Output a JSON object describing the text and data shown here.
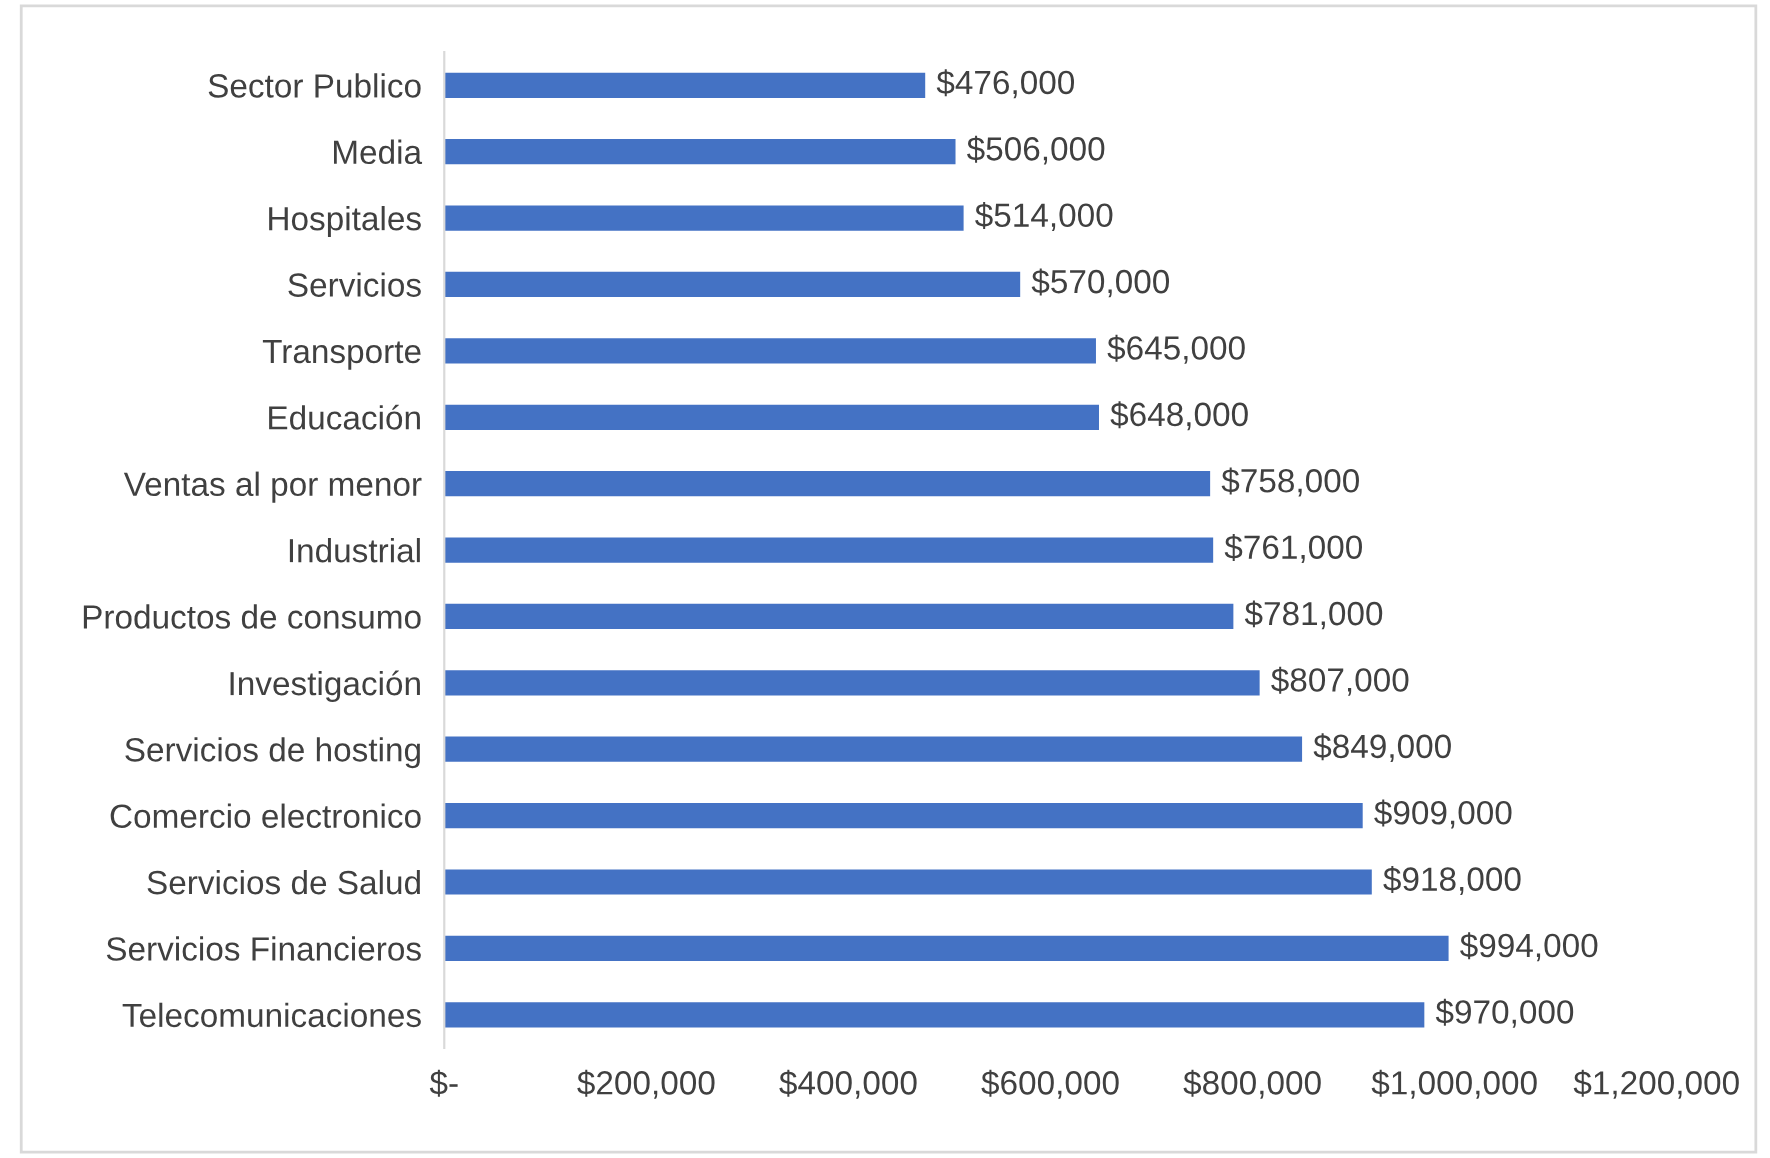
{
  "chart_data": {
    "type": "bar",
    "orientation": "horizontal",
    "categories": [
      "Sector Publico",
      "Media",
      "Hospitales",
      "Servicios",
      "Transporte",
      "Educación",
      "Ventas al por menor",
      "Industrial",
      "Productos de consumo",
      "Investigación",
      "Servicios de hosting",
      "Comercio electronico",
      "Servicios de Salud",
      "Servicios Financieros",
      "Telecomunicaciones"
    ],
    "values": [
      476000,
      506000,
      514000,
      570000,
      645000,
      648000,
      758000,
      761000,
      781000,
      807000,
      849000,
      909000,
      918000,
      994000,
      970000
    ],
    "value_labels": [
      "$476,000",
      "$506,000",
      "$514,000",
      "$570,000",
      "$645,000",
      "$648,000",
      "$758,000",
      "$761,000",
      "$781,000",
      "$807,000",
      "$849,000",
      "$909,000",
      "$918,000",
      "$994,000",
      "$970,000"
    ],
    "color": "#4472c4",
    "xlim": [
      0,
      1200000
    ],
    "xticks": [
      {
        "value": 0,
        "label": "$-"
      },
      {
        "value": 200000,
        "label": "$200,000"
      },
      {
        "value": 400000,
        "label": "$400,000"
      },
      {
        "value": 600000,
        "label": "$600,000"
      },
      {
        "value": 800000,
        "label": "$800,000"
      },
      {
        "value": 1000000,
        "label": "$1,000,000"
      },
      {
        "value": 1200000,
        "label": "$1,200,000"
      }
    ],
    "grid": false,
    "legend": false
  }
}
